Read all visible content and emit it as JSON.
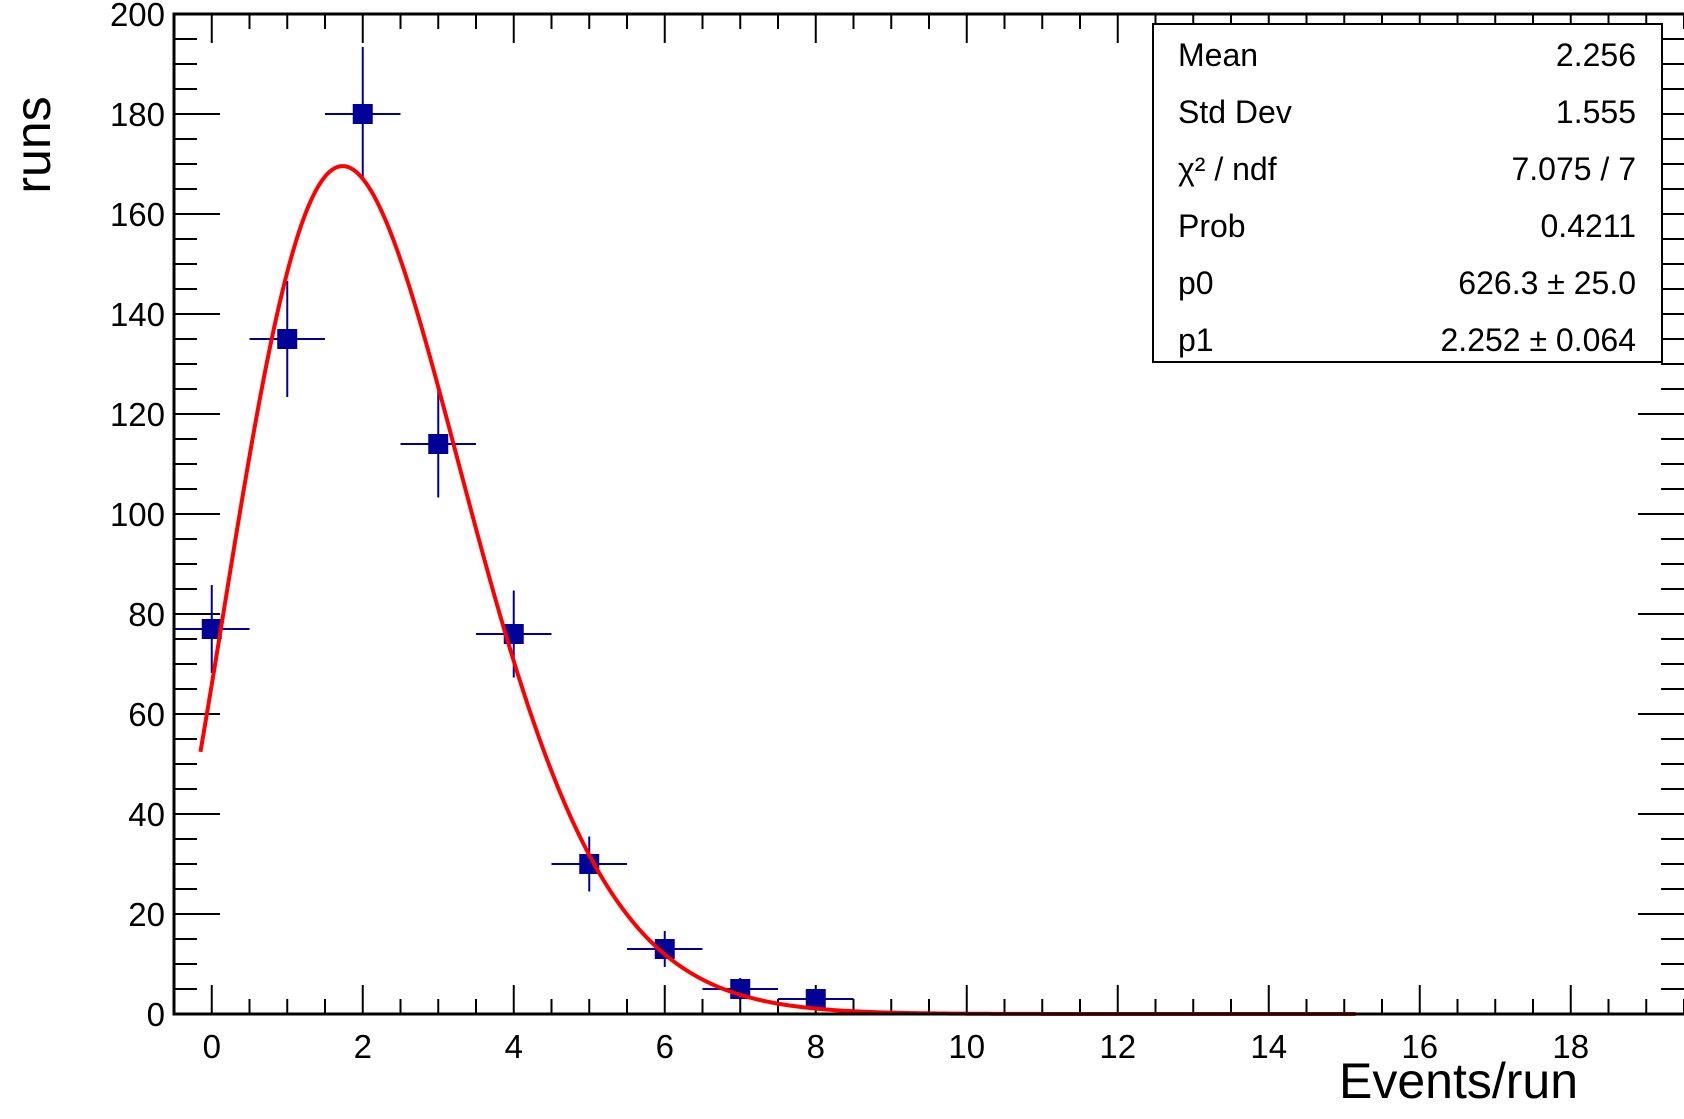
{
  "chart_data": {
    "type": "scatter",
    "title": "",
    "xlabel": "Events/run",
    "ylabel": "runs",
    "xlim": [
      -0.5,
      19.5
    ],
    "ylim": [
      0,
      200
    ],
    "x_ticks": [
      0,
      2,
      4,
      6,
      8,
      10,
      12,
      14,
      16,
      18
    ],
    "y_ticks": [
      0,
      20,
      40,
      60,
      80,
      100,
      120,
      140,
      160,
      180,
      200
    ],
    "series": [
      {
        "type": "points_with_errors",
        "color": "#000099",
        "points": [
          {
            "x": 0,
            "y": 77,
            "yerr": 8.8
          },
          {
            "x": 1,
            "y": 135,
            "yerr": 11.6
          },
          {
            "x": 2,
            "y": 180,
            "yerr": 13.4
          },
          {
            "x": 3,
            "y": 114,
            "yerr": 10.7
          },
          {
            "x": 4,
            "y": 76,
            "yerr": 8.7
          },
          {
            "x": 5,
            "y": 30,
            "yerr": 5.5
          },
          {
            "x": 6,
            "y": 13,
            "yerr": 3.6
          },
          {
            "x": 7,
            "y": 5,
            "yerr": 2.2
          },
          {
            "x": 8,
            "y": 3,
            "yerr": 1.7
          }
        ]
      },
      {
        "type": "fit_curve",
        "color": "#ff0000",
        "function": "p0 * p1^x * exp(-p1) / Gamma(x+1)",
        "x_range": [
          -0.15,
          15.15
        ],
        "params": {
          "p0": 626.3,
          "p1": 2.252
        }
      }
    ],
    "stats_box": {
      "position": "top-right",
      "rows": [
        {
          "label": "Mean",
          "value": "2.256"
        },
        {
          "label": "Std Dev",
          "value": "1.555"
        },
        {
          "label": "χ² / ndf",
          "value": "7.075 / 7"
        },
        {
          "label": "Prob",
          "value": "0.4211"
        },
        {
          "label": "p0",
          "value": "626.3 ± 25.0"
        },
        {
          "label": "p1",
          "value": "2.252 ± 0.064"
        }
      ]
    }
  }
}
